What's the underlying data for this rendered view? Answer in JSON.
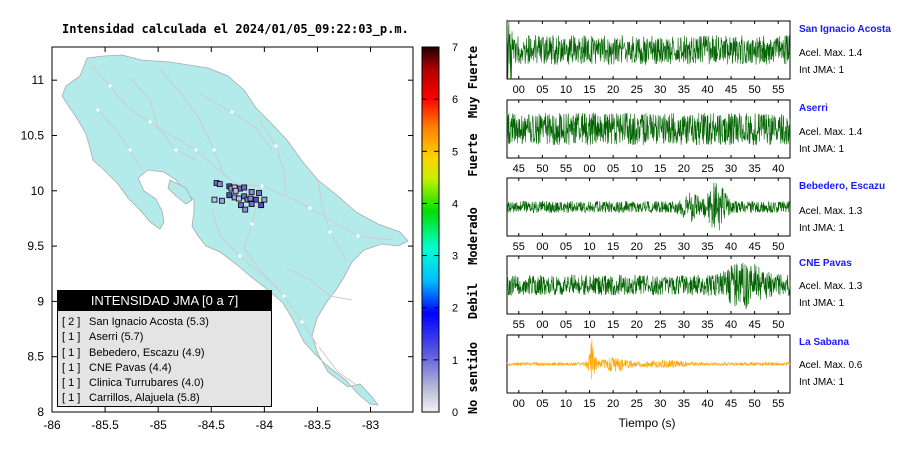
{
  "map": {
    "title": "Intensidad calculada el 2024/01/05_09:22:03_p.m.",
    "lat_ticks": [
      "11",
      "10.5",
      "10",
      "9.5",
      "9",
      "8.5",
      "8"
    ],
    "lon_ticks": [
      "-86",
      "-85.5",
      "-85",
      "-84.5",
      "-84",
      "-83.5",
      "-83"
    ],
    "land_color": "#b3ebeb",
    "station_squares": [
      [
        -84.45,
        10.07
      ],
      [
        -84.42,
        10.06
      ],
      [
        -84.33,
        10.04
      ],
      [
        -84.31,
        10.02
      ],
      [
        -84.28,
        10.03
      ],
      [
        -84.23,
        10.02
      ],
      [
        -84.19,
        10.03
      ],
      [
        -84.12,
        9.99
      ],
      [
        -84.33,
        9.96
      ],
      [
        -84.28,
        9.94
      ],
      [
        -84.24,
        9.93
      ],
      [
        -84.19,
        9.95
      ],
      [
        -84.16,
        9.92
      ],
      [
        -84.13,
        9.93
      ],
      [
        -84.08,
        9.92
      ],
      [
        -84.4,
        9.91
      ],
      [
        -84.47,
        9.92
      ],
      [
        -84.22,
        9.87
      ],
      [
        -84.12,
        9.88
      ],
      [
        -84.18,
        9.83
      ],
      [
        -84.03,
        9.87
      ],
      [
        -84.0,
        9.92
      ],
      [
        -84.27,
        10.0
      ],
      [
        -84.05,
        9.98
      ]
    ]
  },
  "colorbar": {
    "ticks": [
      "0",
      "1",
      "2",
      "3",
      "4",
      "5",
      "6",
      "7"
    ],
    "labels": [
      "No sentido",
      "Debil",
      "Moderado",
      "Fuerte",
      "Muy Fuerte"
    ]
  },
  "legend": {
    "title": "INTENSIDAD JMA [0 a 7]",
    "items": [
      {
        "rank": "[ 2 ]",
        "text": "San Ignacio Acosta (5.3)"
      },
      {
        "rank": "[ 1 ]",
        "text": "Aserri (5.7)"
      },
      {
        "rank": "[ 1 ]",
        "text": "Bebedero, Escazu (4.9)"
      },
      {
        "rank": "[ 1 ]",
        "text": "CNE Pavas (4.4)"
      },
      {
        "rank": "[ 1 ]",
        "text": "Clinica Turrubares (4.0)"
      },
      {
        "rank": "[ 1 ]",
        "text": "Carrillos, Alajuela (5.8)"
      }
    ]
  },
  "traces": {
    "xlabel": "Tiempo (s)",
    "panels": [
      {
        "name": "San Ignacio Acosta",
        "acel": "Acel. Max. 1.4",
        "jma": "Int JMA: 1",
        "color": "#006400",
        "ticks": [
          "00",
          "05",
          "10",
          "15",
          "20",
          "25",
          "30",
          "35",
          "40",
          "45",
          "50",
          "55"
        ],
        "tick_start_index": 0.5
      },
      {
        "name": "Aserri",
        "acel": "Acel. Max. 1.4",
        "jma": "Int JMA: 1",
        "color": "#006400",
        "ticks": [
          "45",
          "50",
          "55",
          "00",
          "05",
          "10",
          "15",
          "20",
          "25",
          "30",
          "35",
          "40"
        ],
        "tick_start_index": 0.5
      },
      {
        "name": "Bebedero, Escazu",
        "acel": "Acel. Max. 1.3",
        "jma": "Int JMA: 1",
        "color": "#006400",
        "ticks": [
          "55",
          "00",
          "05",
          "10",
          "15",
          "20",
          "25",
          "30",
          "35",
          "40",
          "45",
          "50"
        ],
        "tick_start_index": 0.5
      },
      {
        "name": "CNE Pavas",
        "acel": "Acel. Max. 1.3",
        "jma": "Int JMA: 1",
        "color": "#006400",
        "ticks": [
          "55",
          "00",
          "05",
          "10",
          "15",
          "20",
          "25",
          "30",
          "35",
          "40",
          "45",
          "50"
        ],
        "tick_start_index": 0.5
      },
      {
        "name": "La Sabana",
        "acel": "Acel. Max. 0.6",
        "jma": "Int JMA: 1",
        "color": "#ffa500",
        "ticks": [
          "00",
          "05",
          "10",
          "15",
          "20",
          "25",
          "30",
          "35",
          "40",
          "45",
          "50",
          "55"
        ],
        "tick_start_index": 0.5
      }
    ]
  },
  "chart_data": [
    {
      "type": "heatmap",
      "title": "Intensidad calculada el 2024/01/05_09:22:03_p.m.",
      "xlim": [
        -86,
        -82.6
      ],
      "ylim": [
        8,
        11.3
      ],
      "colorbar_range": [
        0,
        7
      ],
      "colorbar_labels": [
        "No sentido",
        "Debil",
        "Moderado",
        "Fuerte",
        "Muy Fuerte"
      ],
      "legend_title": "INTENSIDAD JMA [0 a 7]",
      "stations": [
        {
          "name": "San Ignacio Acosta",
          "rank": 2,
          "value": 5.3
        },
        {
          "name": "Aserri",
          "rank": 1,
          "value": 5.7
        },
        {
          "name": "Bebedero, Escazu",
          "rank": 1,
          "value": 4.9
        },
        {
          "name": "CNE Pavas",
          "rank": 1,
          "value": 4.4
        },
        {
          "name": "Clinica Turrubares",
          "rank": 1,
          "value": 4.0
        },
        {
          "name": "Carrillos, Alajuela",
          "rank": 1,
          "value": 5.8
        }
      ]
    },
    {
      "type": "line",
      "xlabel": "Tiempo (s)",
      "series": [
        {
          "name": "San Ignacio Acosta",
          "acel_max": 1.4,
          "int_jma": 1
        },
        {
          "name": "Aserri",
          "acel_max": 1.4,
          "int_jma": 1
        },
        {
          "name": "Bebedero, Escazu",
          "acel_max": 1.3,
          "int_jma": 1
        },
        {
          "name": "CNE Pavas",
          "acel_max": 1.3,
          "int_jma": 1
        },
        {
          "name": "La Sabana",
          "acel_max": 0.6,
          "int_jma": 1
        }
      ]
    }
  ]
}
